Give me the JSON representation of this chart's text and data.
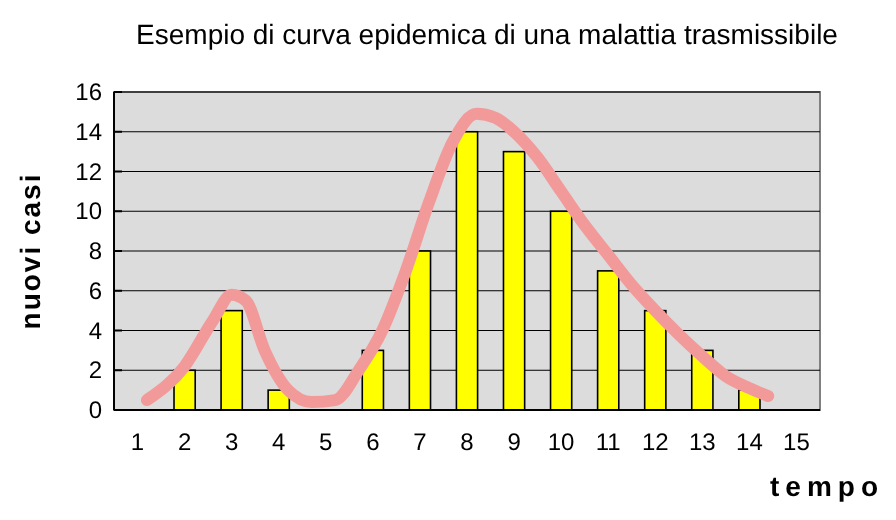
{
  "chart_data": {
    "type": "bar",
    "title": "Esempio di curva epidemica di una malattia trasmissibile",
    "xlabel": "tempo",
    "ylabel": "nuovi casi",
    "xlim": [
      0.5,
      15.5
    ],
    "xticks": [
      1,
      2,
      3,
      4,
      5,
      6,
      7,
      8,
      9,
      10,
      11,
      12,
      13,
      14,
      15
    ],
    "ylim": [
      0,
      16
    ],
    "yticks": [
      0,
      2,
      4,
      6,
      8,
      10,
      12,
      14,
      16
    ],
    "grid": "y",
    "legend": false,
    "series": [
      {
        "color": "#ffff00",
        "x": [
          1,
          2,
          3,
          4,
          5,
          6,
          7,
          8,
          9,
          10,
          11,
          12,
          13,
          14,
          15
        ],
        "values": [
          0,
          2,
          5,
          1,
          0,
          3,
          8,
          14,
          13,
          10,
          7,
          5,
          3,
          1,
          0
        ]
      },
      {
        "type": "line",
        "color": "#f29a9a",
        "marker": "none",
        "line_style": "solid",
        "x": [
          1.2,
          2,
          2.6,
          3,
          3.3,
          3.7,
          4.2,
          4.7,
          5.2,
          5.7,
          6.2,
          6.7,
          7.2,
          7.7,
          8.2,
          8.6,
          9,
          9.5,
          10,
          10.5,
          11,
          11.5,
          12,
          12.5,
          13,
          13.5,
          14,
          14.4
        ],
        "values": [
          0.5,
          2.2,
          4.5,
          5.8,
          5.5,
          3,
          1,
          0.4,
          0.5,
          2,
          4,
          7,
          10.5,
          13.5,
          14.9,
          14.7,
          14,
          12.7,
          11,
          9.3,
          7.8,
          6.3,
          5,
          3.8,
          2.7,
          1.7,
          1.1,
          0.7
        ]
      }
    ]
  }
}
